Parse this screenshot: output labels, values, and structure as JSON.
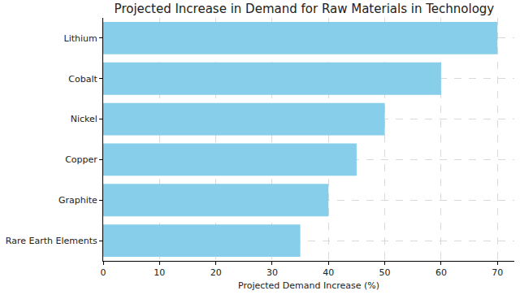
{
  "chart_data": {
    "type": "bar",
    "orientation": "horizontal",
    "title": "Projected Increase in Demand for Raw Materials in Technology",
    "x_label": "Projected Demand Increase (%)",
    "categories": [
      "Lithium",
      "Cobalt",
      "Nickel",
      "Copper",
      "Graphite",
      "Rare Earth Elements"
    ],
    "values": [
      70,
      60,
      50,
      45,
      40,
      35
    ],
    "color": "#87ceeb",
    "xlim": [
      0,
      73
    ],
    "xticks": [
      0,
      10,
      20,
      30,
      40,
      50,
      60,
      70
    ],
    "grid": true
  }
}
